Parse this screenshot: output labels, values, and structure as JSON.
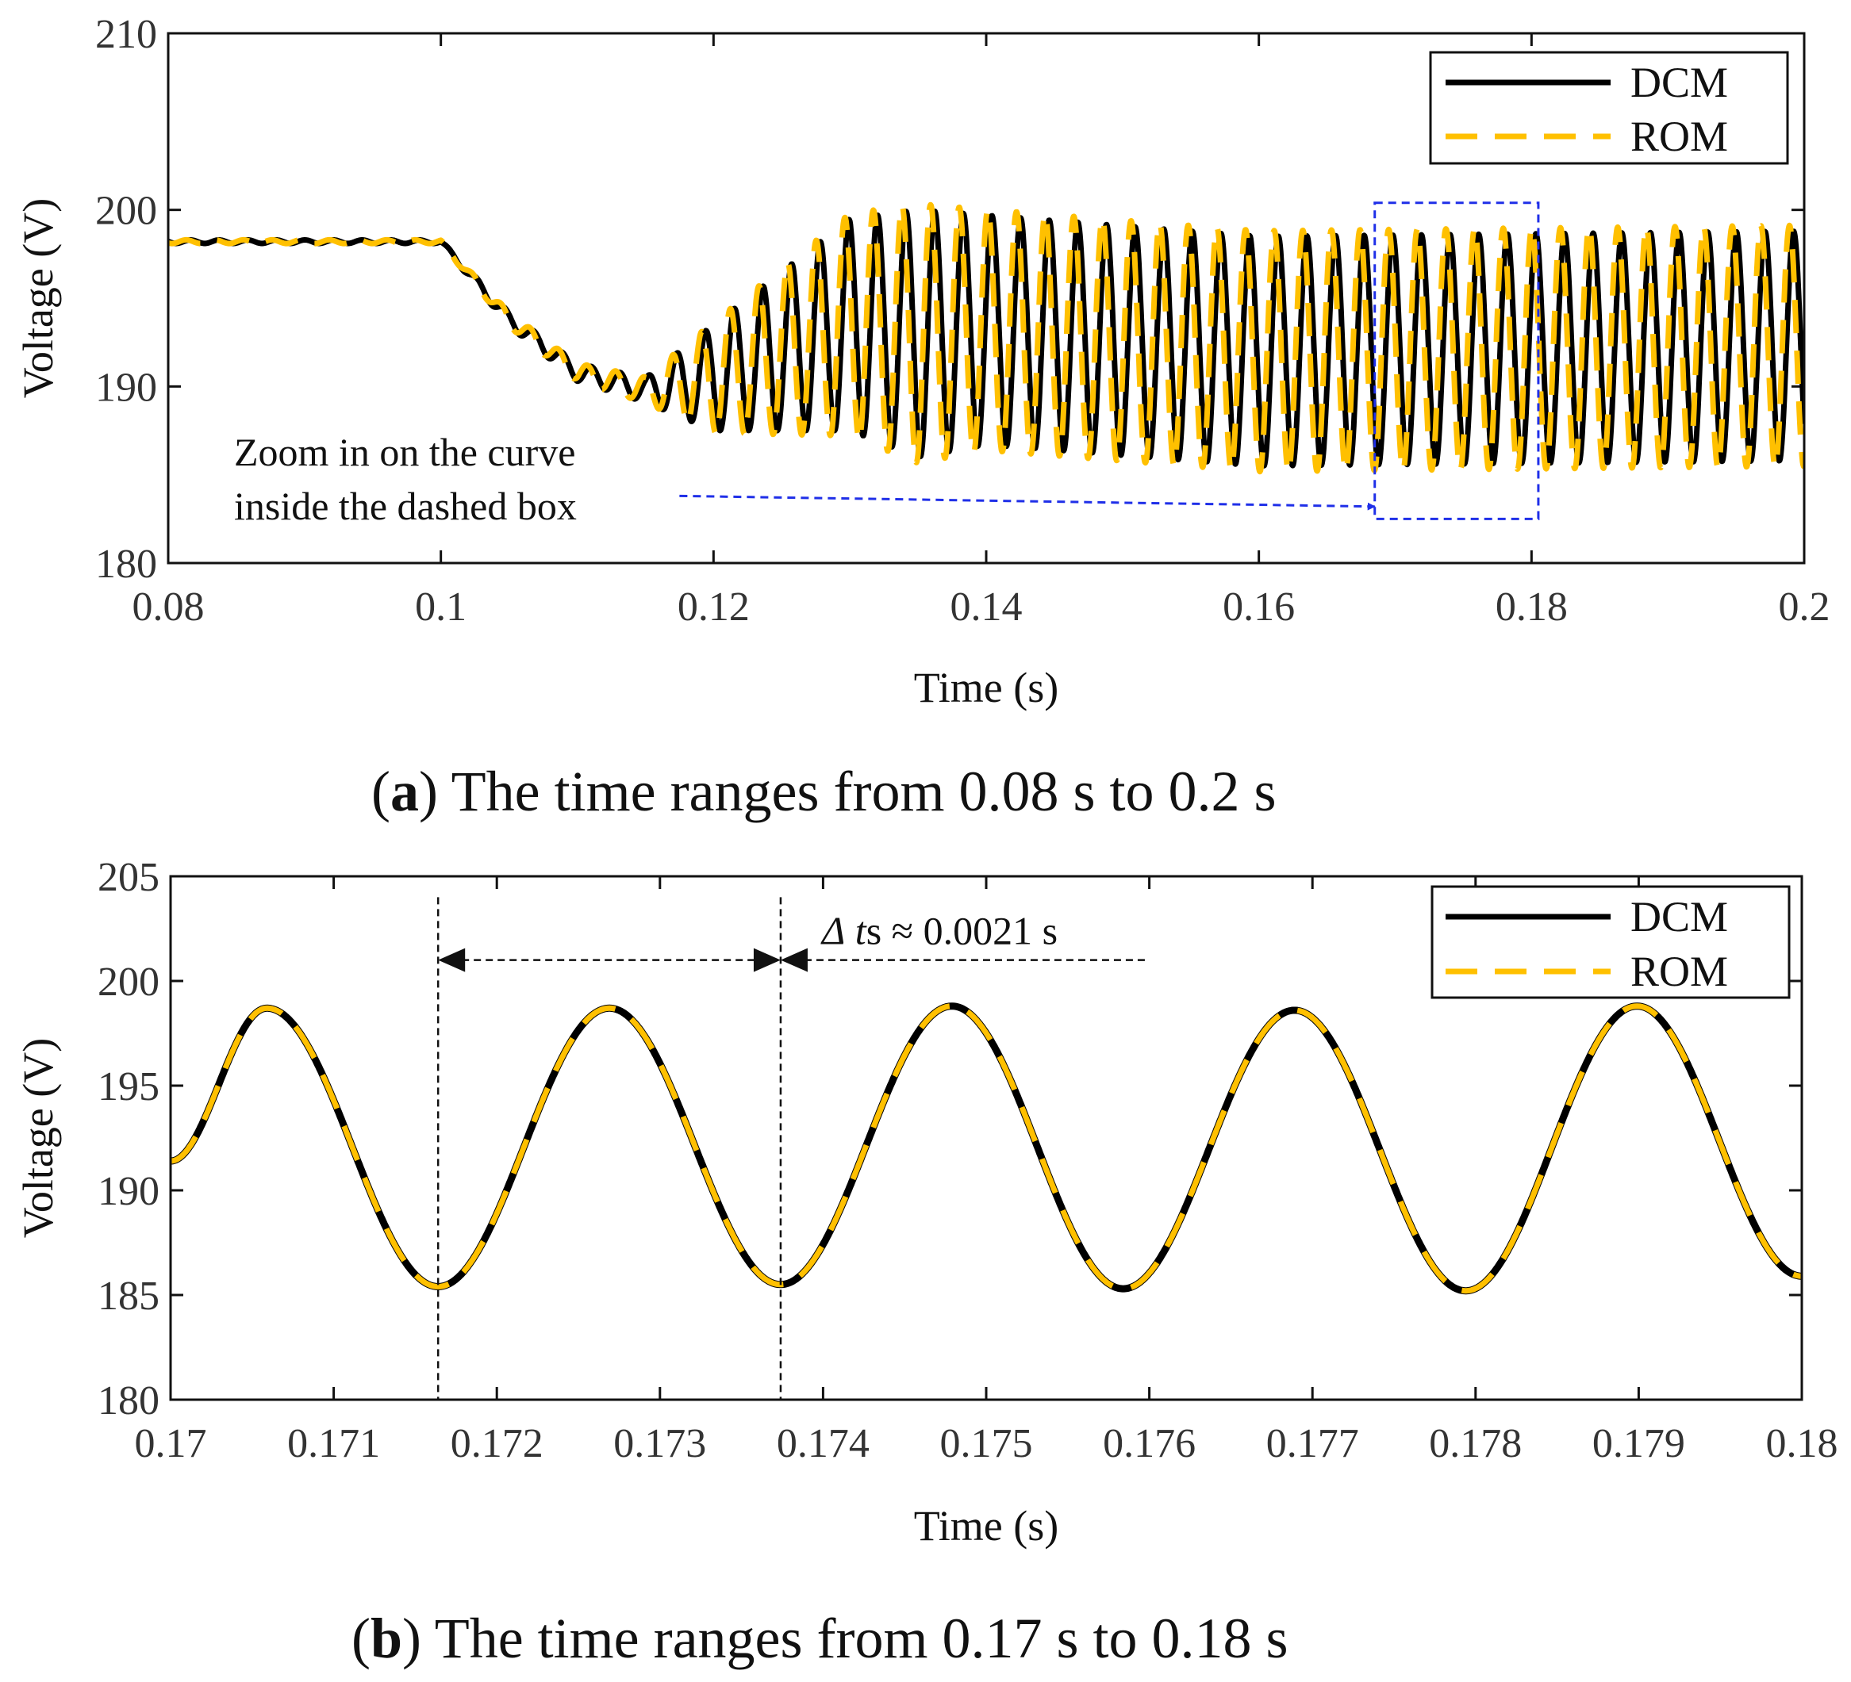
{
  "chart_data": [
    {
      "id": "a",
      "type": "line",
      "caption_letter": "a",
      "caption_text": "The time ranges from 0.08 s to 0.2 s",
      "xlabel": "Time (s)",
      "ylabel": "Voltage (V)",
      "xlim": [
        0.08,
        0.2
      ],
      "ylim": [
        180,
        210
      ],
      "xticks": [
        0.08,
        0.1,
        0.12,
        0.14,
        0.16,
        0.18,
        0.2
      ],
      "xtick_labels": [
        "0.08",
        "0.1",
        "0.12",
        "0.14",
        "0.16",
        "0.18",
        "0.2"
      ],
      "yticks": [
        180,
        190,
        200,
        210
      ],
      "ytick_labels": [
        "180",
        "190",
        "200",
        "210"
      ],
      "legend": {
        "placement": "top-right",
        "entries": [
          "DCM",
          "ROM"
        ]
      },
      "series": [
        {
          "name": "DCM",
          "color": "#000000",
          "style": "solid",
          "description_points": {
            "x": [
              0.08,
              0.1,
              0.105,
              0.11,
              0.115,
              0.12,
              0.13,
              0.135,
              0.14,
              0.16,
              0.2
            ],
            "y_center": [
              198.2,
              198.2,
              193.8,
              190.8,
              189.8,
              190.5,
              193.5,
              193.0,
              193.2,
              192.0,
              192.3
            ],
            "amplitude": [
              0.1,
              0.1,
              0.4,
              0.5,
              0.7,
              3.0,
              6.0,
              7.0,
              6.5,
              6.5,
              6.5
            ]
          }
        },
        {
          "name": "ROM",
          "color": "#FFC000",
          "style": "dashed",
          "description_points": {
            "x": [
              0.08,
              0.1,
              0.105,
              0.11,
              0.115,
              0.12,
              0.13,
              0.135,
              0.14,
              0.16,
              0.2
            ],
            "y_center": [
              198.2,
              198.2,
              193.8,
              190.8,
              189.8,
              190.5,
              193.5,
              193.0,
              193.2,
              192.0,
              192.3
            ],
            "amplitude": [
              0.1,
              0.1,
              0.4,
              0.5,
              0.7,
              3.0,
              6.0,
              7.0,
              6.5,
              6.5,
              6.5
            ]
          }
        }
      ],
      "oscillation_period_s": 0.0021,
      "annotation": {
        "line1": "Zoom in on the curve",
        "line2": "inside the dashed box",
        "box_x": [
          0.1685,
          0.1805
        ],
        "box_y": [
          182.5,
          200.4
        ],
        "arrow_from": [
          0.1175,
          183.8
        ],
        "arrow_to": [
          0.1685,
          183.2
        ],
        "color": "#1f2fe8"
      }
    },
    {
      "id": "b",
      "type": "line",
      "caption_letter": "b",
      "caption_text": "The time ranges from 0.17 s to 0.18 s",
      "xlabel": "Time (s)",
      "ylabel": "Voltage (V)",
      "xlim": [
        0.17,
        0.18
      ],
      "ylim": [
        180,
        205
      ],
      "xticks": [
        0.17,
        0.171,
        0.172,
        0.173,
        0.174,
        0.175,
        0.176,
        0.177,
        0.178,
        0.179,
        0.18
      ],
      "xtick_labels": [
        "0.17",
        "0.171",
        "0.172",
        "0.173",
        "0.174",
        "0.175",
        "0.176",
        "0.177",
        "0.178",
        "0.179",
        "0.18"
      ],
      "yticks": [
        180,
        185,
        190,
        195,
        200,
        205
      ],
      "ytick_labels": [
        "180",
        "185",
        "190",
        "195",
        "200",
        "205"
      ],
      "legend": {
        "placement": "top-right",
        "entries": [
          "DCM",
          "ROM"
        ]
      },
      "series": [
        {
          "name": "DCM",
          "color": "#000000",
          "style": "solid",
          "x": [
            0.17,
            0.17059,
            0.17164,
            0.17269,
            0.17374,
            0.17479,
            0.17584,
            0.17689,
            0.17794,
            0.17899,
            0.18
          ],
          "y": [
            191.4,
            198.7,
            185.4,
            198.7,
            185.5,
            198.8,
            185.3,
            198.6,
            185.2,
            198.8,
            185.9
          ]
        },
        {
          "name": "ROM",
          "color": "#FFC000",
          "style": "dashed",
          "x": [
            0.17,
            0.17059,
            0.17164,
            0.17269,
            0.17374,
            0.17479,
            0.17584,
            0.17689,
            0.17794,
            0.17899,
            0.18
          ],
          "y": [
            191.4,
            198.7,
            185.4,
            198.7,
            185.5,
            198.8,
            185.3,
            198.6,
            185.2,
            198.8,
            185.9
          ]
        }
      ],
      "annotation": {
        "delta_symbol": "Δ",
        "t_symbol": "t",
        "subscript": "s",
        "approx": "≈ 0.0021 s",
        "vline_x": [
          0.17164,
          0.17374
        ],
        "arrow_y": 201.0,
        "line_end_x": 0.176
      }
    }
  ]
}
